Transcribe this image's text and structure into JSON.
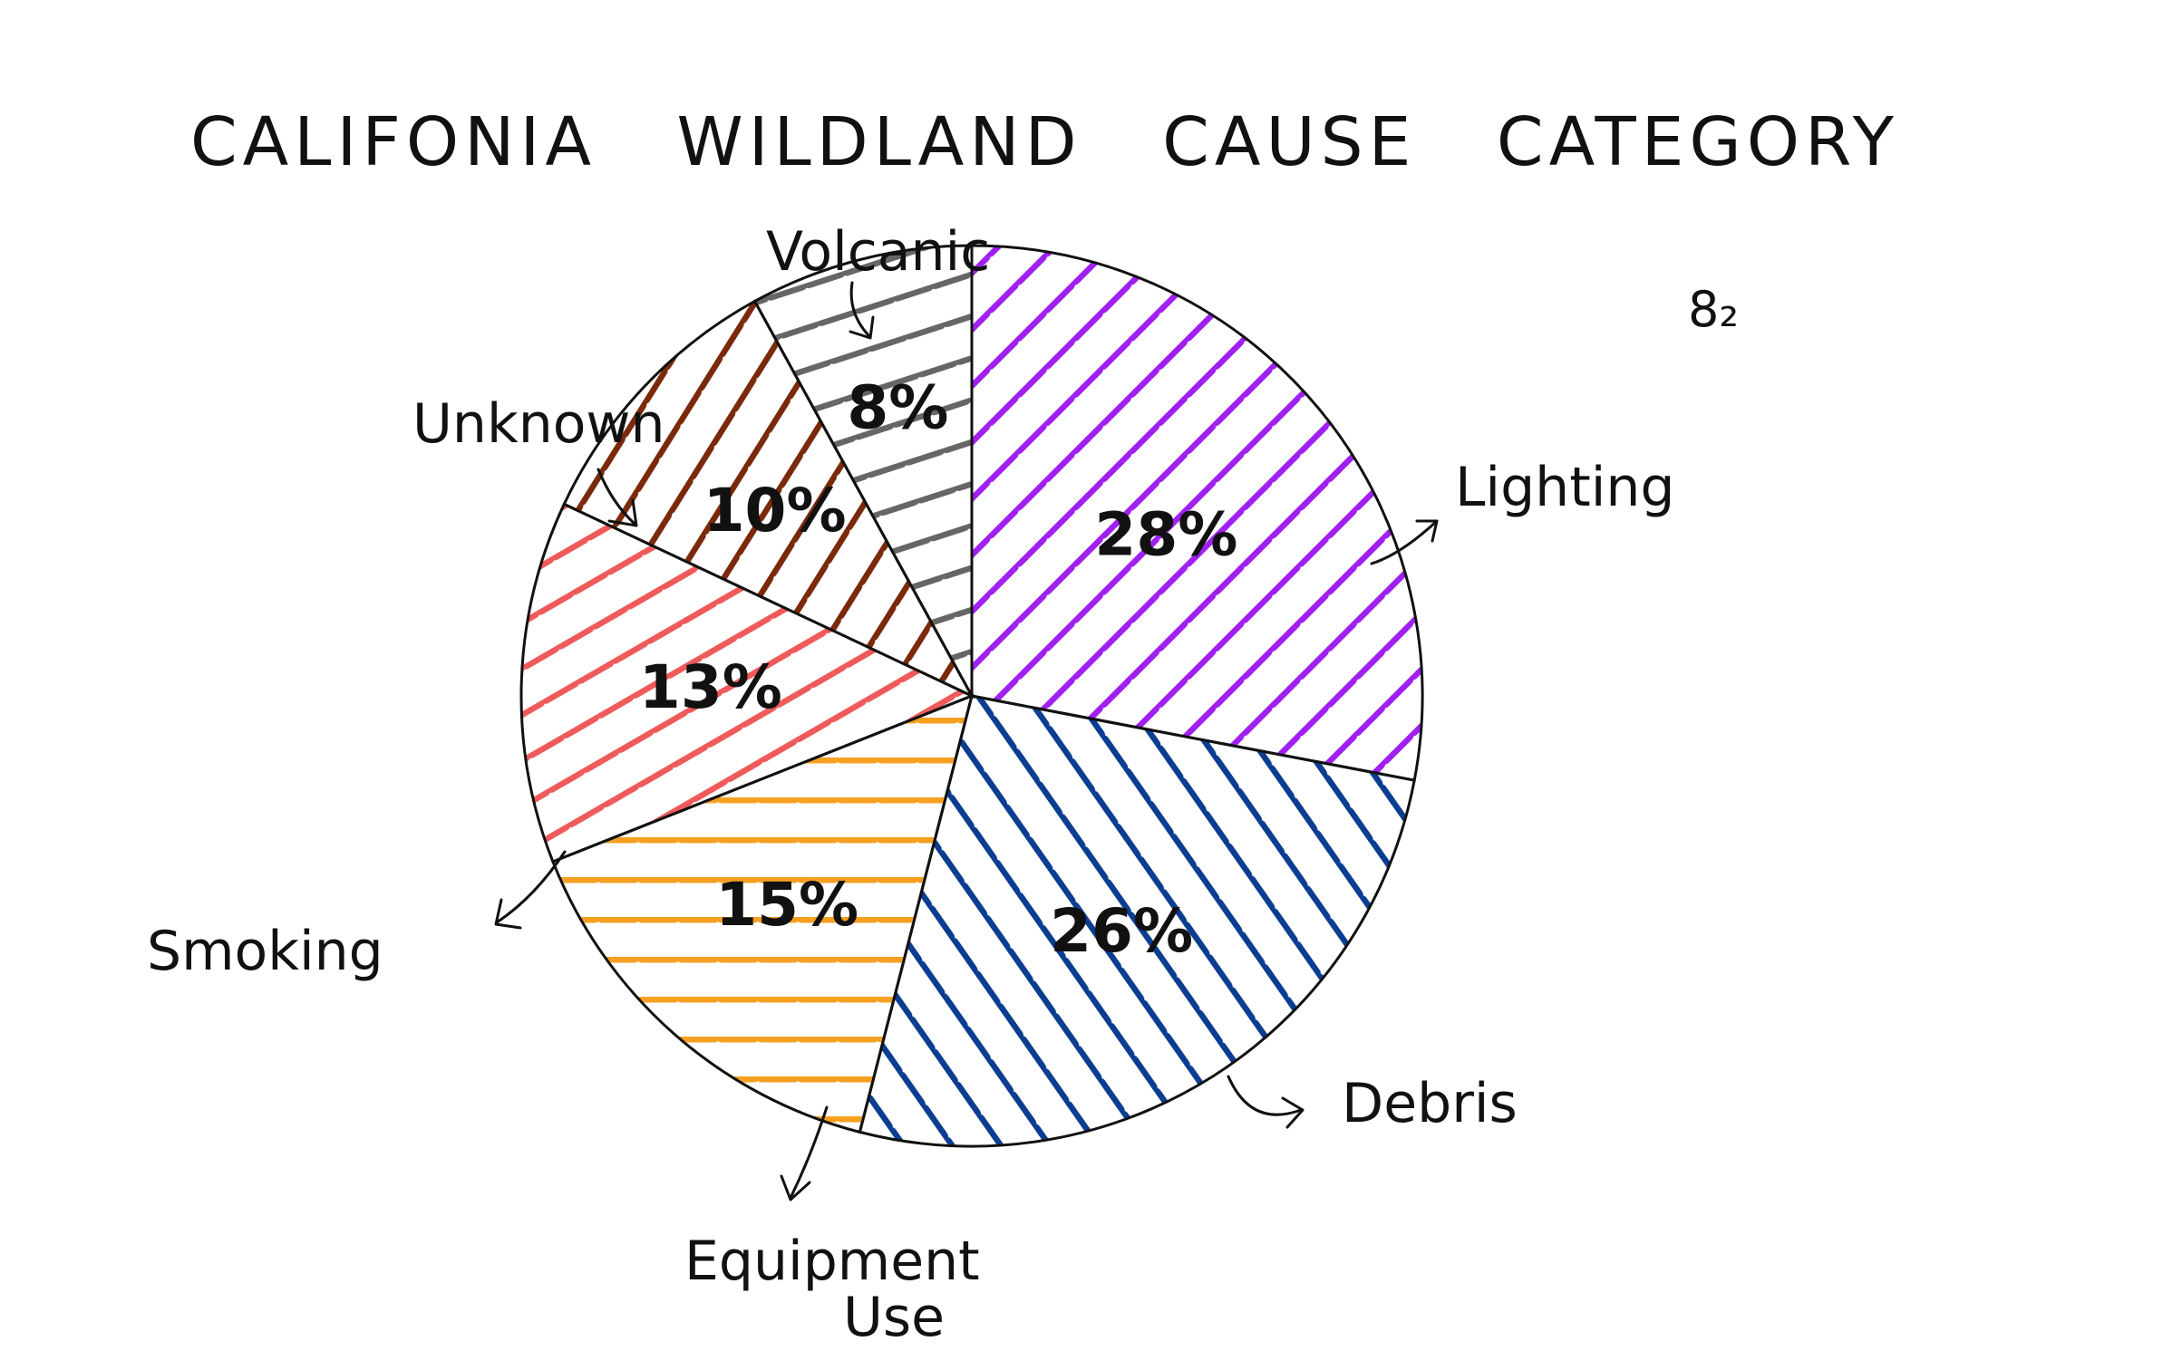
{
  "chart_data": {
    "type": "pie",
    "title": "CALIFONIA   WILDLAND   CAUSE   CATEGORY",
    "note": "8₂",
    "slices": [
      {
        "label": "Lighting",
        "value": 28,
        "value_label": "28%",
        "color": "#a020f0"
      },
      {
        "label": "Debris",
        "value": 26,
        "value_label": "26%",
        "color": "#0b3d91"
      },
      {
        "label": "Equipment Use",
        "label_lines": [
          "Equipment",
          "Use"
        ],
        "value": 15,
        "value_label": "15%",
        "color": "#f5a020"
      },
      {
        "label": "Smoking",
        "value": 13,
        "value_label": "13%",
        "color": "#ef5a5a"
      },
      {
        "label": "Unknown",
        "value": 10,
        "value_label": "10%",
        "color": "#7a2a0a"
      },
      {
        "label": "Volcanic",
        "value": 8,
        "value_label": "8%",
        "color": "#666666"
      }
    ],
    "fill_style": "hand-drawn diagonal hatching",
    "legend": "none"
  }
}
